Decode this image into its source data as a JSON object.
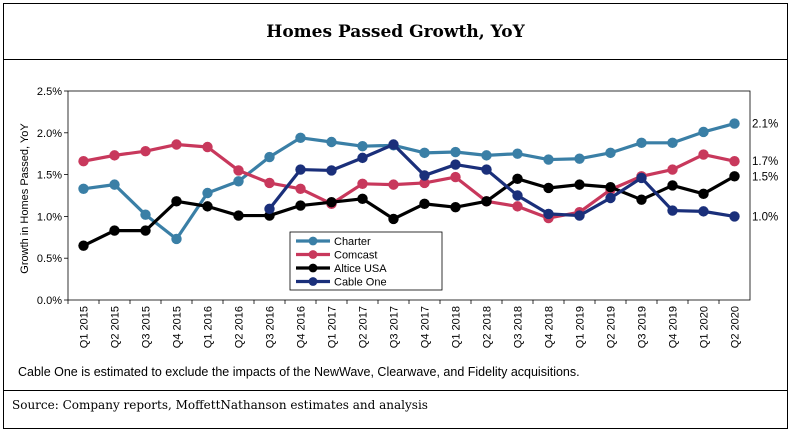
{
  "title": "Homes Passed Growth, YoY",
  "footnote": "Cable One is estimated to exclude the impacts of the NewWave, Clearwave, and Fidelity acquisitions.",
  "source": "Source: Company reports, MoffettNathanson estimates and analysis",
  "chart_data": {
    "type": "line",
    "ylabel": "Growth in Homes Passed, YoY",
    "ylim": [
      0,
      2.5
    ],
    "yticks": [
      "0.0%",
      "0.5%",
      "1.0%",
      "1.5%",
      "2.0%",
      "2.5%"
    ],
    "ytick_values": [
      0,
      0.5,
      1.0,
      1.5,
      2.0,
      2.5
    ],
    "categories": [
      "Q1 2015",
      "Q2 2015",
      "Q3 2015",
      "Q4 2015",
      "Q1 2016",
      "Q2 2016",
      "Q3 2016",
      "Q4 2016",
      "Q1 2017",
      "Q2 2017",
      "Q3 2017",
      "Q4 2017",
      "Q1 2018",
      "Q2 2018",
      "Q3 2018",
      "Q4 2018",
      "Q1 2019",
      "Q2 2019",
      "Q3 2019",
      "Q4 2019",
      "Q1 2020",
      "Q2 2020"
    ],
    "series": [
      {
        "name": "Charter",
        "color": "#3a7fa6",
        "end_label": "2.1%",
        "values": [
          1.33,
          1.38,
          1.02,
          0.73,
          1.28,
          1.42,
          1.71,
          1.94,
          1.89,
          1.84,
          1.85,
          1.76,
          1.77,
          1.73,
          1.75,
          1.68,
          1.69,
          1.76,
          1.88,
          1.88,
          2.01,
          2.11
        ]
      },
      {
        "name": "Comcast",
        "color": "#c8385c",
        "end_label": "1.7%",
        "values": [
          1.66,
          1.73,
          1.78,
          1.86,
          1.83,
          1.55,
          1.4,
          1.33,
          1.15,
          1.39,
          1.38,
          1.4,
          1.47,
          1.18,
          1.12,
          0.98,
          1.05,
          1.32,
          1.48,
          1.56,
          1.74,
          1.66
        ]
      },
      {
        "name": "Altice USA",
        "color": "#000000",
        "end_label": "1.5%",
        "values": [
          0.65,
          0.83,
          0.83,
          1.18,
          1.12,
          1.01,
          1.01,
          1.13,
          1.17,
          1.21,
          0.97,
          1.15,
          1.11,
          1.18,
          1.45,
          1.34,
          1.38,
          1.35,
          1.2,
          1.37,
          1.27,
          1.48
        ]
      },
      {
        "name": "Cable One",
        "color": "#1a2f7a",
        "end_label": "1.0%",
        "values": [
          null,
          null,
          null,
          null,
          null,
          null,
          1.09,
          1.56,
          1.55,
          1.7,
          1.86,
          1.49,
          1.62,
          1.56,
          1.25,
          1.03,
          1.01,
          1.22,
          1.46,
          1.07,
          1.06,
          1.0
        ]
      }
    ],
    "legend_position": "center",
    "grid": false
  }
}
